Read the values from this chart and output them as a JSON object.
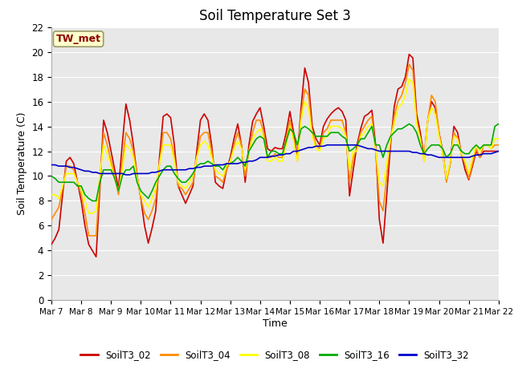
{
  "title": "Soil Temperature Set 3",
  "xlabel": "Time",
  "ylabel": "Soil Temperature (C)",
  "ylim": [
    0,
    22
  ],
  "yticks": [
    0,
    2,
    4,
    6,
    8,
    10,
    12,
    14,
    16,
    18,
    20,
    22
  ],
  "annotation_text": "TW_met",
  "annotation_color": "#8b0000",
  "annotation_bg": "#ffffcc",
  "annotation_border": "#999966",
  "fig_bg_color": "#ffffff",
  "plot_bg_color": "#e8e8e8",
  "grid_color": "#ffffff",
  "series": {
    "SoilT3_02": {
      "color": "#cc0000",
      "x": [
        0,
        0.125,
        0.25,
        0.375,
        0.5,
        0.625,
        0.75,
        0.875,
        1.0,
        1.125,
        1.25,
        1.375,
        1.5,
        1.625,
        1.75,
        1.875,
        2.0,
        2.125,
        2.25,
        2.375,
        2.5,
        2.625,
        2.75,
        2.875,
        3.0,
        3.125,
        3.25,
        3.375,
        3.5,
        3.625,
        3.75,
        3.875,
        4.0,
        4.125,
        4.25,
        4.375,
        4.5,
        4.625,
        4.75,
        4.875,
        5.0,
        5.125,
        5.25,
        5.375,
        5.5,
        5.625,
        5.75,
        5.875,
        6.0,
        6.125,
        6.25,
        6.375,
        6.5,
        6.625,
        6.75,
        6.875,
        7.0,
        7.125,
        7.25,
        7.375,
        7.5,
        7.625,
        7.75,
        7.875,
        8.0,
        8.125,
        8.25,
        8.375,
        8.5,
        8.625,
        8.75,
        8.875,
        9.0,
        9.125,
        9.25,
        9.375,
        9.5,
        9.625,
        9.75,
        9.875,
        10.0,
        10.125,
        10.25,
        10.375,
        10.5,
        10.625,
        10.75,
        10.875,
        11.0,
        11.125,
        11.25,
        11.375,
        11.5,
        11.625,
        11.75,
        11.875,
        12.0,
        12.125,
        12.25,
        12.375,
        12.5,
        12.625,
        12.75,
        12.875,
        13.0,
        13.125,
        13.25,
        13.375,
        13.5,
        13.625,
        13.75,
        13.875,
        14.0,
        14.125,
        14.25,
        14.375,
        14.5,
        14.625,
        14.75,
        14.875,
        15.0
      ],
      "y": [
        4.5,
        5.0,
        5.7,
        8.5,
        11.2,
        11.5,
        11.0,
        9.5,
        8.0,
        6.0,
        4.5,
        4.0,
        3.5,
        9.0,
        14.5,
        13.5,
        12.0,
        10.5,
        9.0,
        12.5,
        15.8,
        14.5,
        12.5,
        10.0,
        8.2,
        6.0,
        4.6,
        5.8,
        7.2,
        11.5,
        14.8,
        15.0,
        14.7,
        12.5,
        9.2,
        8.5,
        7.8,
        8.5,
        9.2,
        12.0,
        14.5,
        15.0,
        14.5,
        12.5,
        9.5,
        9.2,
        9.0,
        10.5,
        11.5,
        13.0,
        14.2,
        12.5,
        9.5,
        12.5,
        14.4,
        15.0,
        15.5,
        14.0,
        12.2,
        12.0,
        12.3,
        12.2,
        12.2,
        13.5,
        15.2,
        13.5,
        11.5,
        15.5,
        18.7,
        17.5,
        14.0,
        13.0,
        12.5,
        14.0,
        14.6,
        15.0,
        15.3,
        15.5,
        15.2,
        14.5,
        8.4,
        10.5,
        12.5,
        13.8,
        14.8,
        15.0,
        15.3,
        12.5,
        6.5,
        4.6,
        8.5,
        12.5,
        15.6,
        17.0,
        17.2,
        18.0,
        19.8,
        19.5,
        15.0,
        13.5,
        11.5,
        14.5,
        16.0,
        15.5,
        13.5,
        12.0,
        9.7,
        11.0,
        14.0,
        13.5,
        11.8,
        10.5,
        9.7,
        10.8,
        12.0,
        11.5,
        12.0,
        12.0,
        12.0,
        12.0,
        12.0
      ]
    },
    "SoilT3_04": {
      "color": "#ff8c00",
      "x": [
        0,
        0.125,
        0.25,
        0.375,
        0.5,
        0.625,
        0.75,
        0.875,
        1.0,
        1.125,
        1.25,
        1.375,
        1.5,
        1.625,
        1.75,
        1.875,
        2.0,
        2.125,
        2.25,
        2.375,
        2.5,
        2.625,
        2.75,
        2.875,
        3.0,
        3.125,
        3.25,
        3.375,
        3.5,
        3.625,
        3.75,
        3.875,
        4.0,
        4.125,
        4.25,
        4.375,
        4.5,
        4.625,
        4.75,
        4.875,
        5.0,
        5.125,
        5.25,
        5.375,
        5.5,
        5.625,
        5.75,
        5.875,
        6.0,
        6.125,
        6.25,
        6.375,
        6.5,
        6.625,
        6.75,
        6.875,
        7.0,
        7.125,
        7.25,
        7.375,
        7.5,
        7.625,
        7.75,
        7.875,
        8.0,
        8.125,
        8.25,
        8.375,
        8.5,
        8.625,
        8.75,
        8.875,
        9.0,
        9.125,
        9.25,
        9.375,
        9.5,
        9.625,
        9.75,
        9.875,
        10.0,
        10.125,
        10.25,
        10.375,
        10.5,
        10.625,
        10.75,
        10.875,
        11.0,
        11.125,
        11.25,
        11.375,
        11.5,
        11.625,
        11.75,
        11.875,
        12.0,
        12.125,
        12.25,
        12.375,
        12.5,
        12.625,
        12.75,
        12.875,
        13.0,
        13.125,
        13.25,
        13.375,
        13.5,
        13.625,
        13.75,
        13.875,
        14.0,
        14.125,
        14.25,
        14.375,
        14.5,
        14.625,
        14.75,
        14.875,
        15.0
      ],
      "y": [
        6.5,
        7.0,
        7.5,
        9.0,
        10.8,
        10.8,
        10.5,
        9.5,
        8.5,
        7.0,
        5.2,
        5.2,
        5.2,
        9.5,
        13.5,
        12.5,
        11.2,
        10.0,
        8.5,
        11.0,
        13.5,
        13.0,
        12.0,
        10.0,
        8.2,
        7.0,
        6.5,
        7.2,
        8.2,
        11.0,
        13.5,
        13.5,
        13.0,
        11.5,
        9.2,
        9.0,
        8.5,
        9.0,
        9.5,
        11.5,
        13.2,
        13.5,
        13.5,
        12.0,
        10.0,
        9.8,
        9.5,
        10.5,
        11.2,
        12.5,
        13.5,
        12.5,
        10.0,
        12.0,
        13.5,
        14.5,
        14.5,
        13.5,
        11.5,
        11.5,
        11.8,
        11.5,
        11.5,
        13.0,
        14.5,
        13.0,
        11.2,
        15.0,
        17.0,
        16.5,
        13.5,
        12.5,
        12.2,
        13.5,
        13.8,
        14.5,
        14.5,
        14.5,
        14.5,
        13.5,
        9.5,
        11.5,
        12.2,
        13.5,
        14.0,
        14.5,
        14.8,
        12.0,
        8.0,
        7.2,
        10.0,
        13.0,
        14.8,
        16.0,
        16.5,
        17.5,
        19.0,
        18.5,
        14.5,
        13.0,
        11.2,
        14.5,
        16.5,
        16.0,
        13.5,
        11.8,
        9.5,
        11.0,
        13.5,
        13.0,
        11.8,
        11.0,
        9.8,
        11.0,
        12.2,
        11.5,
        12.5,
        12.5,
        12.2,
        12.5,
        12.5
      ]
    },
    "SoilT3_08": {
      "color": "#ffff00",
      "x": [
        0,
        0.125,
        0.25,
        0.375,
        0.5,
        0.625,
        0.75,
        0.875,
        1.0,
        1.125,
        1.25,
        1.375,
        1.5,
        1.625,
        1.75,
        1.875,
        2.0,
        2.125,
        2.25,
        2.375,
        2.5,
        2.625,
        2.75,
        2.875,
        3.0,
        3.125,
        3.25,
        3.375,
        3.5,
        3.625,
        3.75,
        3.875,
        4.0,
        4.125,
        4.25,
        4.375,
        4.5,
        4.625,
        4.75,
        4.875,
        5.0,
        5.125,
        5.25,
        5.375,
        5.5,
        5.625,
        5.75,
        5.875,
        6.0,
        6.125,
        6.25,
        6.375,
        6.5,
        6.625,
        6.75,
        6.875,
        7.0,
        7.125,
        7.25,
        7.375,
        7.5,
        7.625,
        7.75,
        7.875,
        8.0,
        8.125,
        8.25,
        8.375,
        8.5,
        8.625,
        8.75,
        8.875,
        9.0,
        9.125,
        9.25,
        9.375,
        9.5,
        9.625,
        9.75,
        9.875,
        10.0,
        10.125,
        10.25,
        10.375,
        10.5,
        10.625,
        10.75,
        10.875,
        11.0,
        11.125,
        11.25,
        11.375,
        11.5,
        11.625,
        11.75,
        11.875,
        12.0,
        12.125,
        12.25,
        12.375,
        12.5,
        12.625,
        12.75,
        12.875,
        13.0,
        13.125,
        13.25,
        13.375,
        13.5,
        13.625,
        13.75,
        13.875,
        14.0,
        14.125,
        14.25,
        14.375,
        14.5,
        14.625,
        14.75,
        14.875,
        15.0
      ],
      "y": [
        8.5,
        8.5,
        8.2,
        9.2,
        10.2,
        10.2,
        10.2,
        9.5,
        9.0,
        8.0,
        7.0,
        7.0,
        7.2,
        10.0,
        12.5,
        11.8,
        10.8,
        9.8,
        8.8,
        10.5,
        12.5,
        12.2,
        11.5,
        9.8,
        8.5,
        8.0,
        7.5,
        8.2,
        9.0,
        11.0,
        12.5,
        12.5,
        12.5,
        11.2,
        9.5,
        9.2,
        9.0,
        9.5,
        10.0,
        11.5,
        12.5,
        12.8,
        12.5,
        11.5,
        10.5,
        10.2,
        10.0,
        10.8,
        11.2,
        12.2,
        12.8,
        12.2,
        10.5,
        12.0,
        13.0,
        13.5,
        13.8,
        13.0,
        11.2,
        11.2,
        11.5,
        11.2,
        11.2,
        12.5,
        14.0,
        12.8,
        11.2,
        14.5,
        16.0,
        15.5,
        13.2,
        12.2,
        12.0,
        13.0,
        13.2,
        14.0,
        14.0,
        14.0,
        13.8,
        13.2,
        10.5,
        12.0,
        12.0,
        13.2,
        13.5,
        14.0,
        14.2,
        12.2,
        9.5,
        9.2,
        11.0,
        13.0,
        14.2,
        15.5,
        15.8,
        16.5,
        17.8,
        17.5,
        14.2,
        13.0,
        11.2,
        14.5,
        15.5,
        15.0,
        13.2,
        11.8,
        9.8,
        11.2,
        13.2,
        13.0,
        11.8,
        11.2,
        10.2,
        11.5,
        12.5,
        12.0,
        12.5,
        12.5,
        12.2,
        13.0,
        13.0
      ]
    },
    "SoilT3_16": {
      "color": "#00aa00",
      "x": [
        0,
        0.125,
        0.25,
        0.375,
        0.5,
        0.625,
        0.75,
        0.875,
        1.0,
        1.125,
        1.25,
        1.375,
        1.5,
        1.625,
        1.75,
        1.875,
        2.0,
        2.125,
        2.25,
        2.375,
        2.5,
        2.625,
        2.75,
        2.875,
        3.0,
        3.125,
        3.25,
        3.375,
        3.5,
        3.625,
        3.75,
        3.875,
        4.0,
        4.125,
        4.25,
        4.375,
        4.5,
        4.625,
        4.75,
        4.875,
        5.0,
        5.125,
        5.25,
        5.375,
        5.5,
        5.625,
        5.75,
        5.875,
        6.0,
        6.125,
        6.25,
        6.375,
        6.5,
        6.625,
        6.75,
        6.875,
        7.0,
        7.125,
        7.25,
        7.375,
        7.5,
        7.625,
        7.75,
        7.875,
        8.0,
        8.125,
        8.25,
        8.375,
        8.5,
        8.625,
        8.75,
        8.875,
        9.0,
        9.125,
        9.25,
        9.375,
        9.5,
        9.625,
        9.75,
        9.875,
        10.0,
        10.125,
        10.25,
        10.375,
        10.5,
        10.625,
        10.75,
        10.875,
        11.0,
        11.125,
        11.25,
        11.375,
        11.5,
        11.625,
        11.75,
        11.875,
        12.0,
        12.125,
        12.25,
        12.375,
        12.5,
        12.625,
        12.75,
        12.875,
        13.0,
        13.125,
        13.25,
        13.375,
        13.5,
        13.625,
        13.75,
        13.875,
        14.0,
        14.125,
        14.25,
        14.375,
        14.5,
        14.625,
        14.75,
        14.875,
        15.0
      ],
      "y": [
        10.0,
        9.8,
        9.5,
        9.5,
        9.5,
        9.5,
        9.5,
        9.2,
        9.2,
        8.5,
        8.2,
        8.0,
        8.0,
        9.5,
        10.5,
        10.5,
        10.5,
        9.8,
        8.8,
        10.0,
        10.5,
        10.5,
        10.8,
        9.5,
        8.8,
        8.5,
        8.2,
        8.8,
        9.5,
        10.0,
        10.5,
        10.8,
        10.8,
        10.2,
        9.8,
        9.5,
        9.5,
        9.8,
        10.2,
        10.8,
        11.0,
        11.0,
        11.2,
        11.0,
        10.8,
        10.8,
        10.5,
        11.0,
        11.0,
        11.2,
        11.5,
        11.2,
        10.8,
        12.0,
        12.5,
        13.0,
        13.2,
        13.0,
        11.5,
        12.0,
        12.0,
        11.8,
        11.8,
        12.8,
        13.8,
        13.5,
        12.5,
        13.8,
        14.0,
        13.8,
        13.5,
        13.2,
        13.2,
        13.2,
        13.2,
        13.5,
        13.5,
        13.5,
        13.2,
        13.0,
        12.0,
        12.2,
        12.5,
        13.0,
        13.0,
        13.5,
        14.0,
        12.5,
        12.5,
        11.5,
        12.5,
        13.2,
        13.5,
        13.8,
        13.8,
        14.0,
        14.2,
        14.0,
        13.5,
        12.5,
        11.8,
        12.2,
        12.5,
        12.5,
        12.5,
        12.2,
        11.5,
        11.8,
        12.5,
        12.5,
        12.0,
        11.8,
        11.8,
        12.2,
        12.5,
        12.2,
        12.5,
        12.5,
        12.5,
        14.0,
        14.2
      ]
    },
    "SoilT3_32": {
      "color": "#0000cc",
      "x": [
        0,
        0.125,
        0.25,
        0.375,
        0.5,
        0.625,
        0.75,
        0.875,
        1.0,
        1.125,
        1.25,
        1.375,
        1.5,
        1.625,
        1.75,
        1.875,
        2.0,
        2.125,
        2.25,
        2.375,
        2.5,
        2.625,
        2.75,
        2.875,
        3.0,
        3.125,
        3.25,
        3.375,
        3.5,
        3.625,
        3.75,
        3.875,
        4.0,
        4.125,
        4.25,
        4.375,
        4.5,
        4.625,
        4.75,
        4.875,
        5.0,
        5.125,
        5.25,
        5.375,
        5.5,
        5.625,
        5.75,
        5.875,
        6.0,
        6.125,
        6.25,
        6.375,
        6.5,
        6.625,
        6.75,
        6.875,
        7.0,
        7.125,
        7.25,
        7.375,
        7.5,
        7.625,
        7.75,
        7.875,
        8.0,
        8.125,
        8.25,
        8.375,
        8.5,
        8.625,
        8.75,
        8.875,
        9.0,
        9.125,
        9.25,
        9.375,
        9.5,
        9.625,
        9.75,
        9.875,
        10.0,
        10.125,
        10.25,
        10.375,
        10.5,
        10.625,
        10.75,
        10.875,
        11.0,
        11.125,
        11.25,
        11.375,
        11.5,
        11.625,
        11.75,
        11.875,
        12.0,
        12.125,
        12.25,
        12.375,
        12.5,
        12.625,
        12.75,
        12.875,
        13.0,
        13.125,
        13.25,
        13.375,
        13.5,
        13.625,
        13.75,
        13.875,
        14.0,
        14.125,
        14.25,
        14.375,
        14.5,
        14.625,
        14.75,
        14.875,
        15.0
      ],
      "y": [
        10.9,
        10.9,
        10.8,
        10.8,
        10.8,
        10.7,
        10.7,
        10.6,
        10.5,
        10.4,
        10.4,
        10.3,
        10.3,
        10.2,
        10.2,
        10.2,
        10.2,
        10.2,
        10.2,
        10.2,
        10.1,
        10.1,
        10.2,
        10.2,
        10.2,
        10.2,
        10.2,
        10.3,
        10.3,
        10.4,
        10.5,
        10.5,
        10.5,
        10.5,
        10.5,
        10.5,
        10.5,
        10.6,
        10.6,
        10.7,
        10.7,
        10.8,
        10.8,
        10.8,
        10.9,
        10.9,
        10.9,
        11.0,
        11.0,
        11.0,
        11.0,
        11.1,
        11.1,
        11.2,
        11.2,
        11.3,
        11.5,
        11.5,
        11.5,
        11.6,
        11.6,
        11.7,
        11.7,
        11.8,
        11.8,
        12.0,
        12.0,
        12.1,
        12.2,
        12.3,
        12.3,
        12.4,
        12.4,
        12.4,
        12.5,
        12.5,
        12.5,
        12.5,
        12.5,
        12.5,
        12.5,
        12.5,
        12.5,
        12.4,
        12.3,
        12.2,
        12.2,
        12.1,
        12.0,
        12.0,
        12.0,
        12.0,
        12.0,
        12.0,
        12.0,
        12.0,
        12.0,
        11.9,
        11.9,
        11.8,
        11.8,
        11.7,
        11.7,
        11.6,
        11.5,
        11.5,
        11.5,
        11.5,
        11.5,
        11.5,
        11.5,
        11.5,
        11.5,
        11.6,
        11.7,
        11.7,
        11.8,
        11.8,
        11.8,
        11.9,
        12.0
      ]
    }
  },
  "xtick_positions": [
    0,
    1,
    2,
    3,
    4,
    5,
    6,
    7,
    8,
    9,
    10,
    11,
    12,
    13,
    14,
    15
  ],
  "xtick_labels": [
    "Mar 7",
    "Mar 8",
    "Mar 9",
    "Mar 10",
    "Mar 11",
    "Mar 12",
    "Mar 13",
    "Mar 14",
    "Mar 15",
    "Mar 16",
    "Mar 17",
    "Mar 18",
    "Mar 19",
    "Mar 20",
    "Mar 21",
    "Mar 22"
  ],
  "xlim": [
    0,
    15
  ],
  "legend_entries": [
    "SoilT3_02",
    "SoilT3_04",
    "SoilT3_08",
    "SoilT3_16",
    "SoilT3_32"
  ],
  "legend_colors": [
    "#cc0000",
    "#ff8c00",
    "#ffff00",
    "#00aa00",
    "#0000cc"
  ]
}
